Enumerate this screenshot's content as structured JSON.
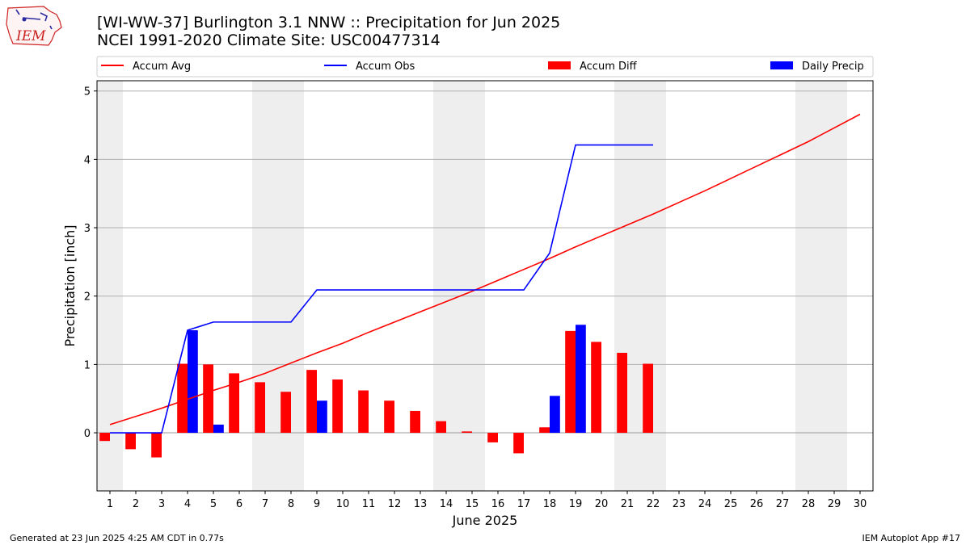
{
  "title_line1": "[WI-WW-37] Burlington 3.1 NNW :: Precipitation for Jun 2025",
  "title_line2": "NCEI 1991-2020 Climate Site: USC00477314",
  "footer_left": "Generated at 23 Jun 2025 4:25 AM CDT in 0.77s",
  "footer_right": "IEM Autoplot App #17",
  "logo_text": "IEM",
  "chart_data": {
    "type": "bar",
    "xlabel": "June 2025",
    "ylabel": "Precipitation [inch]",
    "xlim": [
      0.5,
      30.5
    ],
    "ylim": [
      -0.85,
      5.15
    ],
    "yticks": [
      0,
      1,
      2,
      3,
      4,
      5
    ],
    "x": [
      1,
      2,
      3,
      4,
      5,
      6,
      7,
      8,
      9,
      10,
      11,
      12,
      13,
      14,
      15,
      16,
      17,
      18,
      19,
      20,
      21,
      22,
      23,
      24,
      25,
      26,
      27,
      28,
      29,
      30
    ],
    "grid": "horizontal",
    "legend_placement": "top",
    "weekend_shading": [
      [
        0.5,
        1.5
      ],
      [
        6.5,
        8.5
      ],
      [
        13.5,
        15.5
      ],
      [
        20.5,
        22.5
      ],
      [
        27.5,
        29.5
      ]
    ],
    "series": [
      {
        "name": "Accum Avg",
        "kind": "line",
        "color": "#ff0000",
        "x": [
          1,
          2,
          3,
          4,
          5,
          6,
          7,
          8,
          9,
          10,
          11,
          12,
          13,
          14,
          15,
          16,
          17,
          18,
          19,
          20,
          21,
          22,
          23,
          24,
          25,
          26,
          27,
          28,
          29,
          30
        ],
        "values": [
          0.12,
          0.24,
          0.36,
          0.49,
          0.62,
          0.74,
          0.87,
          1.02,
          1.17,
          1.31,
          1.47,
          1.62,
          1.77,
          1.92,
          2.07,
          2.23,
          2.39,
          2.55,
          2.72,
          2.88,
          3.04,
          3.2,
          3.37,
          3.54,
          3.72,
          3.9,
          4.08,
          4.26,
          4.46,
          4.66
        ]
      },
      {
        "name": "Accum Obs",
        "kind": "line",
        "color": "#0000ff",
        "x": [
          1,
          2,
          3,
          4,
          5,
          6,
          7,
          8,
          9,
          10,
          11,
          12,
          13,
          14,
          15,
          16,
          17,
          18,
          19,
          20,
          21,
          22
        ],
        "values": [
          0,
          0,
          0,
          1.5,
          1.62,
          1.62,
          1.62,
          1.62,
          2.09,
          2.09,
          2.09,
          2.09,
          2.09,
          2.09,
          2.09,
          2.09,
          2.09,
          2.63,
          4.21,
          4.21,
          4.21,
          4.21
        ]
      },
      {
        "name": "Accum Diff",
        "kind": "bar",
        "color": "#ff0000",
        "offset": -0.2,
        "x": [
          1,
          2,
          3,
          4,
          5,
          6,
          7,
          8,
          9,
          10,
          11,
          12,
          13,
          14,
          15,
          16,
          17,
          18,
          19,
          20,
          21,
          22
        ],
        "values": [
          -0.12,
          -0.24,
          -0.36,
          1.01,
          1.0,
          0.87,
          0.74,
          0.6,
          0.92,
          0.78,
          0.62,
          0.47,
          0.32,
          0.17,
          0.02,
          -0.14,
          -0.3,
          0.08,
          1.49,
          1.33,
          1.17,
          1.01
        ]
      },
      {
        "name": "Daily Precip",
        "kind": "bar",
        "color": "#0000ff",
        "offset": 0.2,
        "x": [
          4,
          5,
          9,
          18,
          19
        ],
        "values": [
          1.5,
          0.12,
          0.47,
          0.54,
          1.58
        ]
      }
    ]
  }
}
